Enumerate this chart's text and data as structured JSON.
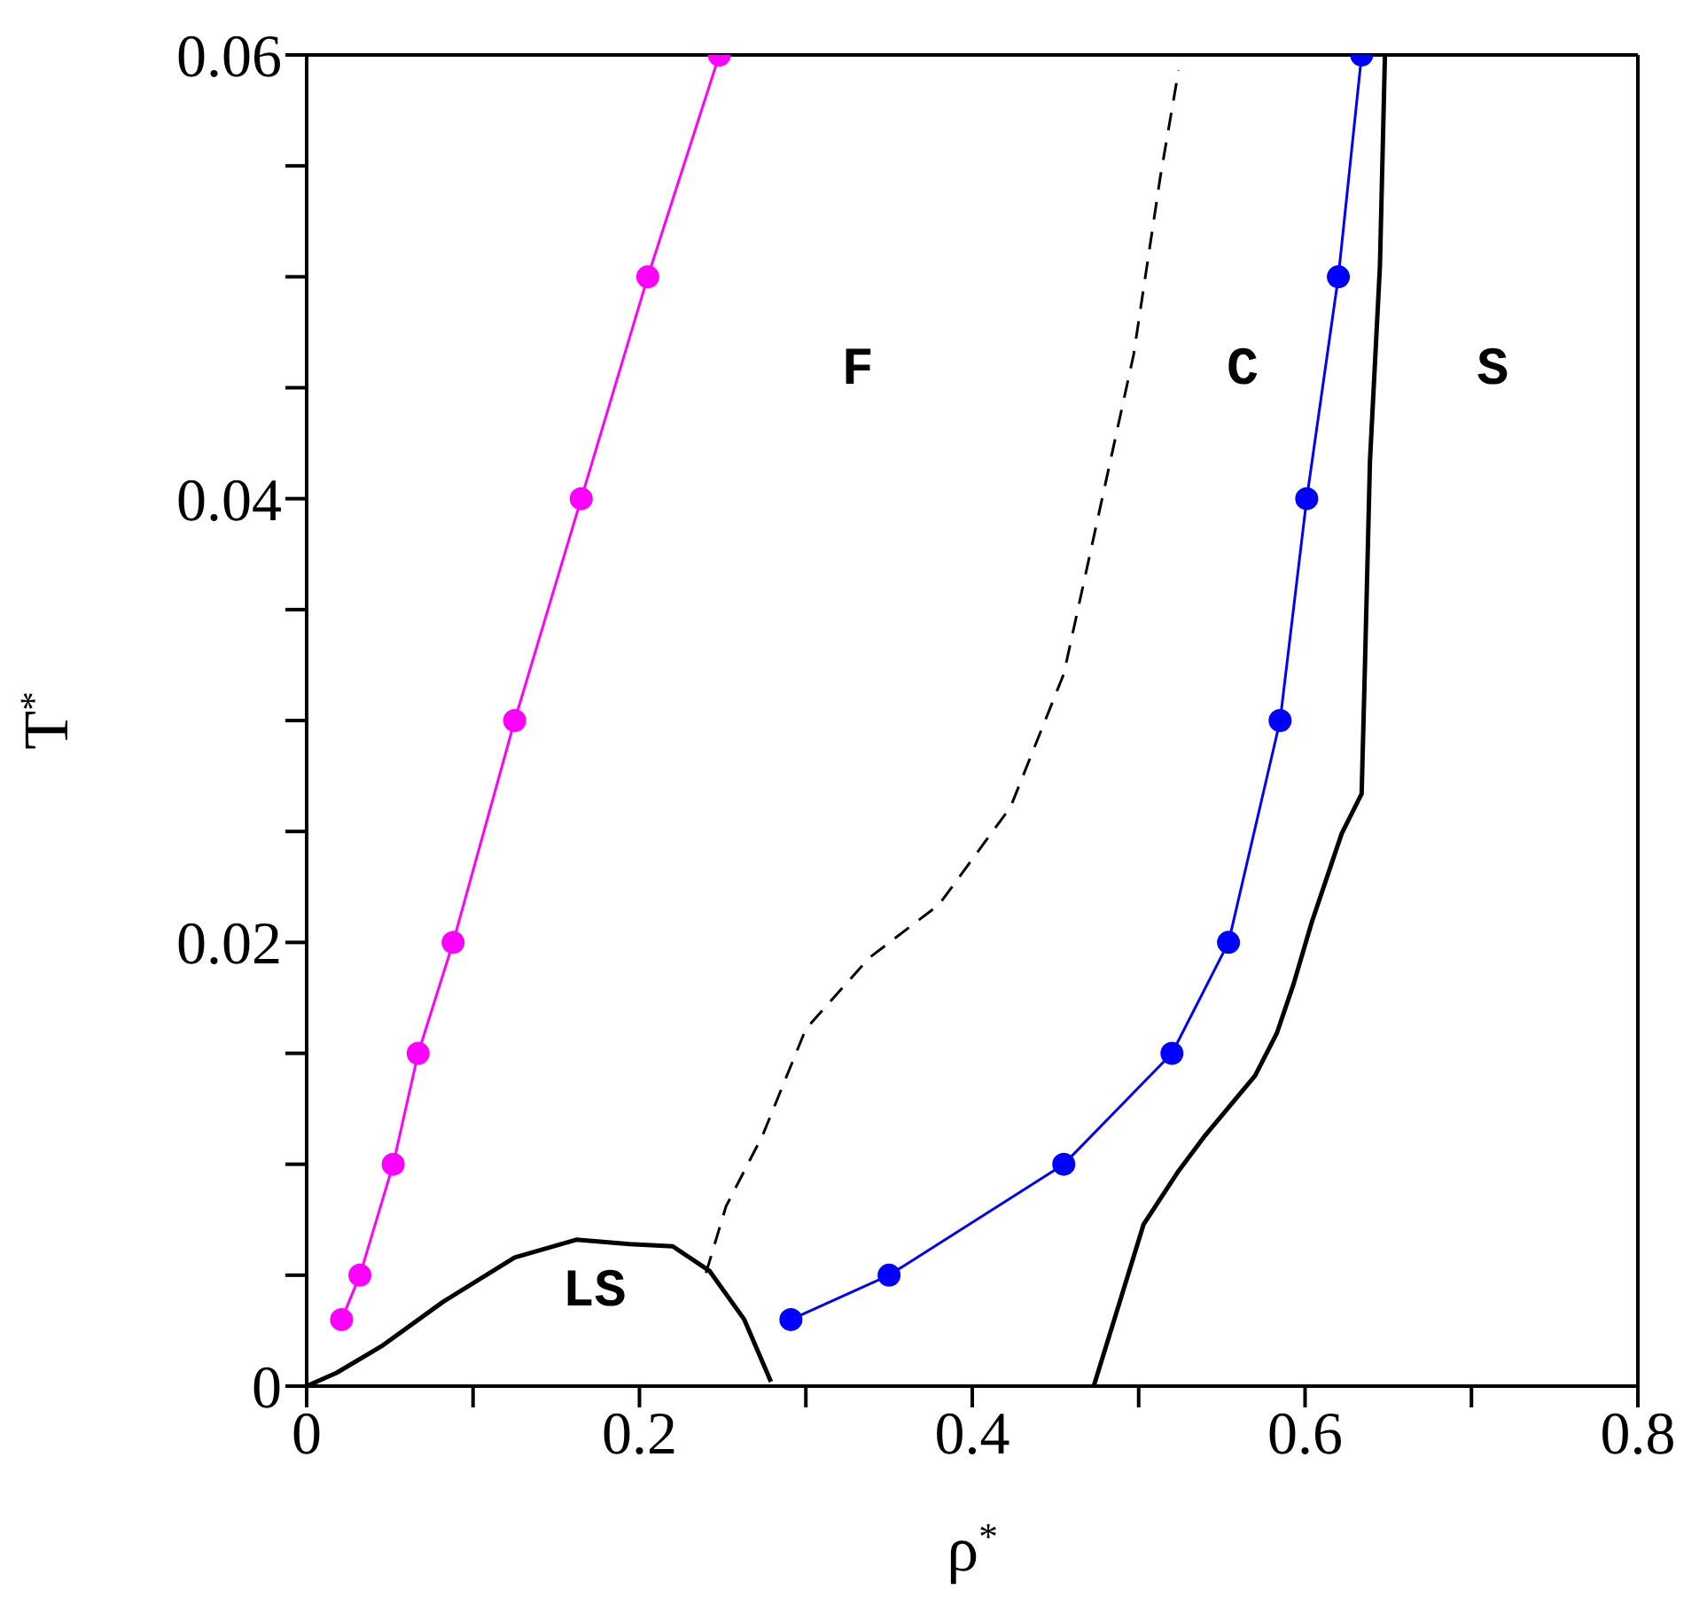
{
  "chart_data": {
    "type": "line",
    "xlabel": "ρ$^{*}$",
    "ylabel": "T$^{*}$",
    "xlim": [
      0,
      0.8
    ],
    "ylim": [
      0,
      0.06
    ],
    "xticks": [
      0,
      {
        "value": 0.1,
        "label": null
      },
      0.2,
      {
        "value": 0.3,
        "label": null
      },
      0.4,
      {
        "value": 0.5,
        "label": null
      },
      0.6,
      {
        "value": 0.7,
        "label": null
      },
      0.8
    ],
    "yticks": [
      0,
      {
        "value": 0.005,
        "label": null
      },
      {
        "value": 0.01,
        "label": null
      },
      {
        "value": 0.015,
        "label": null
      },
      0.02,
      {
        "value": 0.025,
        "label": null
      },
      {
        "value": 0.03,
        "label": null
      },
      {
        "value": 0.035,
        "label": null
      },
      0.04,
      {
        "value": 0.045,
        "label": null
      },
      {
        "value": 0.05,
        "label": null
      },
      {
        "value": 0.055,
        "label": null
      },
      0.06
    ],
    "grid": false,
    "series": [
      {
        "color": "#ff00ff",
        "marker": "circle",
        "line_style": "solid",
        "x": [
          0.021,
          0.032,
          0.052,
          0.067,
          0.088,
          0.125,
          0.165,
          0.205,
          0.248
        ],
        "values": [
          0.003,
          0.005,
          0.01,
          0.015,
          0.02,
          0.03,
          0.04,
          0.05,
          0.06
        ]
      },
      {
        "color": "#0000ff",
        "marker": "circle",
        "line_style": "solid",
        "x": [
          0.291,
          0.35,
          0.455,
          0.52,
          0.554,
          0.585,
          0.601,
          0.62,
          0.634
        ],
        "values": [
          0.003,
          0.005,
          0.01,
          0.015,
          0.02,
          0.03,
          0.04,
          0.05,
          0.06
        ]
      },
      {
        "color": "#000000",
        "marker": "none",
        "line_style": "solid",
        "x": [
          0,
          0.018,
          0.045,
          0.082,
          0.125,
          0.162,
          0.194,
          0.22,
          0.242,
          0.263,
          0.279
        ],
        "values": [
          0,
          0.0006,
          0.0018,
          0.0038,
          0.0058,
          0.0066,
          0.0064,
          0.0063,
          0.0052,
          0.003,
          0.0002
        ]
      },
      {
        "color": "#000000",
        "marker": "none",
        "line_style": "dashed",
        "x": [
          0.24,
          0.252,
          0.274,
          0.3,
          0.338,
          0.38,
          0.423,
          0.455,
          0.476,
          0.497,
          0.513,
          0.524
        ],
        "values": [
          0.0051,
          0.0081,
          0.0113,
          0.0161,
          0.0193,
          0.0217,
          0.0261,
          0.0321,
          0.0393,
          0.0465,
          0.0545,
          0.0593
        ]
      },
      {
        "color": "#000000",
        "marker": "none",
        "line_style": "solid",
        "x": [
          0.473,
          0.487,
          0.503,
          0.524,
          0.54,
          0.57,
          0.583,
          0.593,
          0.604,
          0.622,
          0.634,
          0.636,
          0.639,
          0.645,
          0.648
        ],
        "values": [
          0,
          0.0034,
          0.0073,
          0.0097,
          0.0113,
          0.014,
          0.0159,
          0.0181,
          0.0209,
          0.0249,
          0.0267,
          0.0325,
          0.0417,
          0.0505,
          0.06
        ]
      }
    ],
    "annotations": [
      "F",
      "C",
      "S",
      "LS"
    ]
  }
}
